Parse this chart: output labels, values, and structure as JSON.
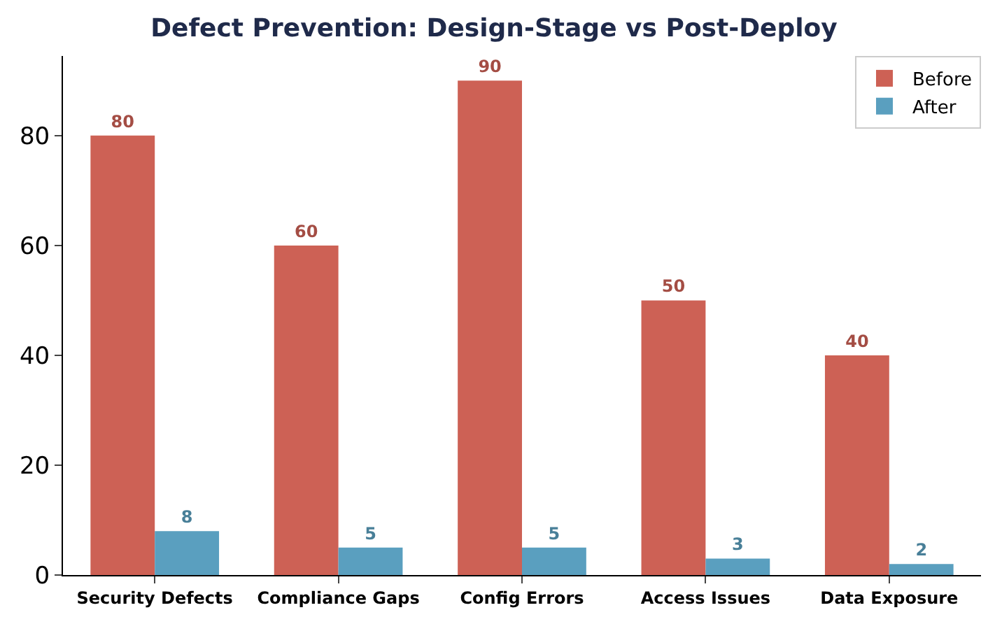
{
  "chart_data": {
    "type": "bar",
    "title": "Defect Prevention: Design-Stage vs Post-Deploy",
    "categories": [
      "Security Defects",
      "Compliance Gaps",
      "Config Errors",
      "Access Issues",
      "Data Exposure"
    ],
    "series": [
      {
        "name": "Before",
        "color": "#cd6155",
        "values": [
          80,
          60,
          90,
          50,
          40
        ]
      },
      {
        "name": "After",
        "color": "#5a9fbf",
        "values": [
          8,
          5,
          5,
          3,
          2
        ]
      }
    ],
    "ylim": [
      0,
      94.5
    ],
    "yticks": [
      0,
      20,
      40,
      60,
      80
    ],
    "legend": "top right",
    "data_labels": true
  }
}
